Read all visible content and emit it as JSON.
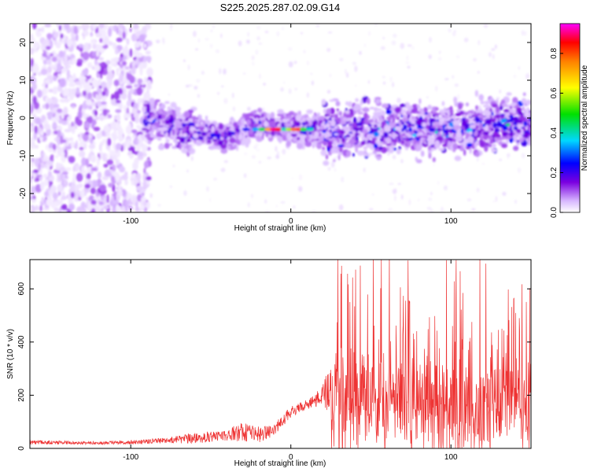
{
  "title": "S225.2025.287.02.09.G14",
  "chart_data": [
    {
      "type": "heatmap",
      "title": "S225.2025.287.02.09.G14",
      "xlabel": "Height of straight line (km)",
      "ylabel": "Frequency (Hz)",
      "xlim": [
        -163,
        150
      ],
      "ylim": [
        -25,
        25
      ],
      "x_ticks": [
        -100,
        0,
        100
      ],
      "y_ticks": [
        -20,
        -10,
        0,
        10,
        20
      ],
      "colorbar": {
        "label": "Normalized spectral amplitude",
        "range": [
          0,
          0.95
        ],
        "ticks": [
          0.0,
          0.2,
          0.4,
          0.6,
          0.8
        ],
        "colors": [
          "#ffffff",
          "#d8b8ff",
          "#7a00e0",
          "#0000ff",
          "#00d8ff",
          "#00e000",
          "#ffff00",
          "#ff8000",
          "#ff0000",
          "#ff00ff"
        ]
      },
      "ridge": {
        "description_points_x": [
          -90,
          -70,
          -40,
          -20,
          0,
          20,
          50,
          100,
          150
        ],
        "description_points_y": [
          0,
          -3,
          -5,
          -2,
          -3,
          -3,
          -3,
          -3,
          -1
        ],
        "peak_x_range": [
          -15,
          10
        ],
        "peak_y": -3
      }
    },
    {
      "type": "line",
      "xlabel": "Height of straight line (km)",
      "ylabel": "SNR (10 * v/v)",
      "xlim": [
        -163,
        150
      ],
      "ylim": [
        0,
        710
      ],
      "x_ticks": [
        -100,
        0,
        100
      ],
      "y_ticks": [
        0,
        200,
        400,
        600
      ],
      "series": [
        {
          "name": "SNR",
          "color": "#ee3333",
          "envelope_x": [
            -163,
            -120,
            -100,
            -80,
            -60,
            -40,
            -30,
            -20,
            -10,
            0,
            10,
            20,
            25,
            30,
            50,
            100,
            150
          ],
          "envelope_base": [
            20,
            18,
            20,
            25,
            30,
            40,
            50,
            40,
            60,
            130,
            160,
            180,
            200,
            200,
            180,
            170,
            160
          ],
          "envelope_amp": [
            15,
            12,
            15,
            20,
            40,
            40,
            80,
            60,
            50,
            40,
            40,
            80,
            250,
            300,
            320,
            330,
            300
          ],
          "peak_max": 715
        }
      ]
    }
  ]
}
